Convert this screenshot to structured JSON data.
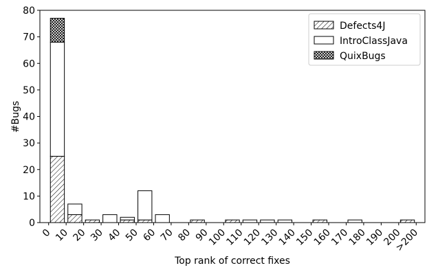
{
  "chart_data": {
    "type": "bar",
    "stacked": true,
    "title": "",
    "xlabel": "Top rank of correct fixes",
    "ylabel": "#Bugs",
    "ylim": [
      0,
      80
    ],
    "yticks": [
      "0",
      "10",
      "20",
      "30",
      "40",
      "50",
      "60",
      "70",
      "80"
    ],
    "xticks": [
      "0",
      "10",
      "20",
      "30",
      "40",
      "50",
      "60",
      "70",
      "80",
      "90",
      "100",
      "110",
      "120",
      "130",
      "140",
      "150",
      "160",
      "170",
      "180",
      "190",
      "200",
      ">200"
    ],
    "bin_starts": [
      0,
      10,
      20,
      30,
      40,
      50,
      60,
      70,
      80,
      90,
      100,
      110,
      120,
      130,
      140,
      150,
      160,
      170,
      180,
      190,
      200
    ],
    "legend_position": "top-right",
    "grid": false,
    "series": [
      {
        "name": "Defects4J",
        "pattern": "diagonal-hatch",
        "values": [
          25,
          3,
          1,
          0,
          1,
          1,
          0,
          0,
          1,
          0,
          1,
          0,
          0,
          0,
          0,
          1,
          0,
          0,
          0,
          0,
          1
        ]
      },
      {
        "name": "IntroClassJava",
        "pattern": "none",
        "values": [
          43,
          4,
          0,
          3,
          1,
          11,
          3,
          0,
          0,
          0,
          0,
          1,
          1,
          1,
          0,
          0,
          0,
          1,
          0,
          0,
          0
        ]
      },
      {
        "name": "QuixBugs",
        "pattern": "cross-hatch",
        "values": [
          9,
          0,
          0,
          0,
          0,
          0,
          0,
          0,
          0,
          0,
          0,
          0,
          0,
          0,
          0,
          0,
          0,
          0,
          0,
          0,
          0
        ]
      }
    ]
  }
}
